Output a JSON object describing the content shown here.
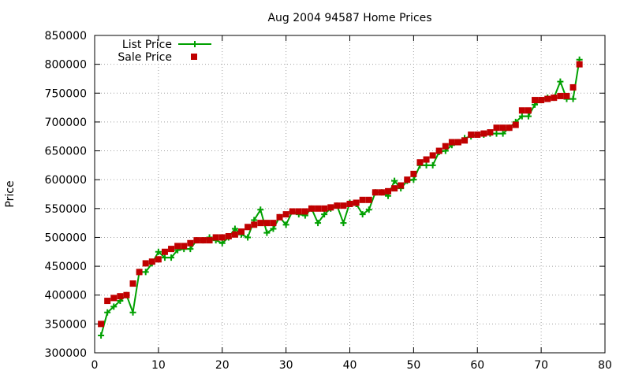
{
  "chart_data": {
    "type": "line",
    "title": "Aug 2004 94587 Home Prices",
    "xlabel": "",
    "ylabel": "Price",
    "xlim": [
      0,
      80
    ],
    "ylim": [
      300000,
      850000
    ],
    "xticks": [
      0,
      10,
      20,
      30,
      40,
      50,
      60,
      70,
      80
    ],
    "yticks": [
      300000,
      350000,
      400000,
      450000,
      500000,
      550000,
      600000,
      650000,
      700000,
      750000,
      800000,
      850000
    ],
    "grid": true,
    "legend_position": "top-left",
    "series": [
      {
        "name": "List Price",
        "style": "line-with-plus-markers",
        "color": "#00a000",
        "x": [
          1,
          2,
          3,
          4,
          5,
          6,
          7,
          8,
          9,
          10,
          11,
          12,
          13,
          14,
          15,
          16,
          17,
          18,
          19,
          20,
          21,
          22,
          23,
          24,
          25,
          26,
          27,
          28,
          29,
          30,
          31,
          32,
          33,
          34,
          35,
          36,
          37,
          38,
          39,
          40,
          41,
          42,
          43,
          44,
          45,
          46,
          47,
          48,
          49,
          50,
          51,
          52,
          53,
          54,
          55,
          56,
          57,
          58,
          59,
          60,
          61,
          62,
          63,
          64,
          65,
          66,
          67,
          68,
          69,
          70,
          71,
          72,
          73,
          74,
          75,
          76
        ],
        "values": [
          330000,
          370000,
          380000,
          390000,
          400000,
          370000,
          440000,
          440000,
          455000,
          475000,
          465000,
          465000,
          478000,
          480000,
          480000,
          495000,
          495000,
          500000,
          495000,
          490000,
          500000,
          515000,
          505000,
          500000,
          530000,
          548000,
          508000,
          515000,
          535000,
          522000,
          545000,
          540000,
          538000,
          550000,
          525000,
          540000,
          550000,
          555000,
          525000,
          560000,
          558000,
          540000,
          548000,
          578000,
          578000,
          572000,
          598000,
          585000,
          598000,
          600000,
          625000,
          625000,
          625000,
          648000,
          650000,
          660000,
          665000,
          672000,
          675000,
          678000,
          678000,
          680000,
          680000,
          680000,
          690000,
          700000,
          710000,
          710000,
          730000,
          738000,
          742000,
          742000,
          770000,
          740000,
          740000,
          808000
        ]
      },
      {
        "name": "Sale Price",
        "style": "square-markers",
        "color": "#c00000",
        "x": [
          1,
          2,
          3,
          4,
          5,
          6,
          7,
          8,
          9,
          10,
          11,
          12,
          13,
          14,
          15,
          16,
          17,
          18,
          19,
          20,
          21,
          22,
          23,
          24,
          25,
          26,
          27,
          28,
          29,
          30,
          31,
          32,
          33,
          34,
          35,
          36,
          37,
          38,
          39,
          40,
          41,
          42,
          43,
          44,
          45,
          46,
          47,
          48,
          49,
          50,
          51,
          52,
          53,
          54,
          55,
          56,
          57,
          58,
          59,
          60,
          61,
          62,
          63,
          64,
          65,
          66,
          67,
          68,
          69,
          70,
          71,
          72,
          73,
          74,
          75,
          76
        ],
        "values": [
          350000,
          390000,
          395000,
          398000,
          400000,
          420000,
          440000,
          455000,
          458000,
          462000,
          475000,
          480000,
          485000,
          485000,
          490000,
          495000,
          495000,
          495000,
          500000,
          500000,
          502000,
          505000,
          510000,
          518000,
          522000,
          525000,
          525000,
          525000,
          535000,
          540000,
          545000,
          545000,
          545000,
          550000,
          550000,
          550000,
          552000,
          555000,
          555000,
          558000,
          560000,
          565000,
          565000,
          578000,
          578000,
          580000,
          585000,
          590000,
          600000,
          610000,
          630000,
          635000,
          642000,
          650000,
          658000,
          665000,
          665000,
          668000,
          678000,
          678000,
          680000,
          682000,
          690000,
          690000,
          690000,
          695000,
          720000,
          720000,
          738000,
          738000,
          740000,
          742000,
          745000,
          745000,
          760000,
          800000
        ]
      }
    ]
  }
}
